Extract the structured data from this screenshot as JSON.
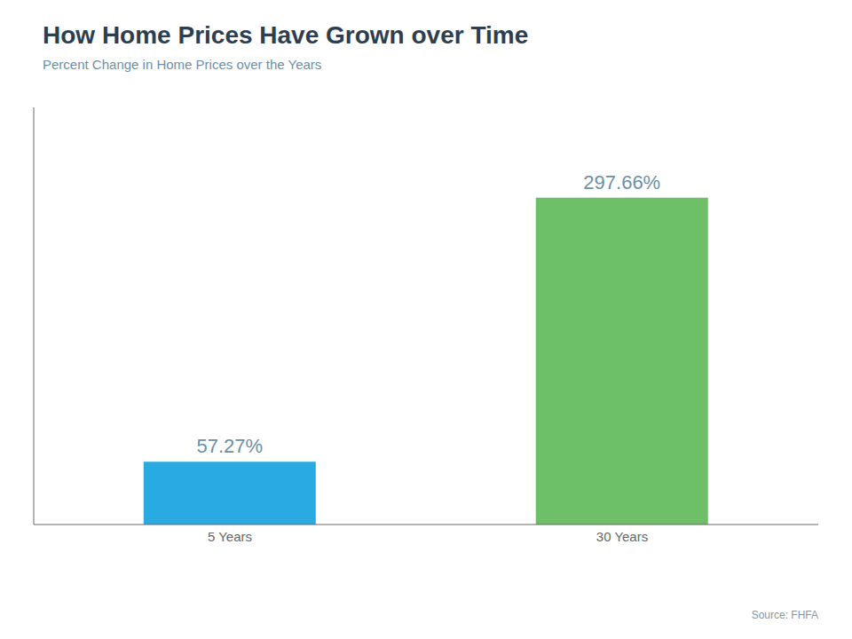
{
  "chart_data": {
    "type": "bar",
    "title": "How Home Prices Have Grown over Time",
    "subtitle": "Percent Change in Home Prices over the Years",
    "annotations": [
      "Source: FHFA"
    ],
    "categories": [
      "5 Years",
      "30 Years"
    ],
    "values": [
      57.27,
      297.66
    ],
    "value_labels": [
      "57.27%",
      "297.66%"
    ],
    "data_labels": true,
    "colors": [
      "#29ABE2",
      "#6DC067"
    ],
    "ylim": [
      0,
      380
    ],
    "grid": false,
    "tick_labels": "x"
  }
}
